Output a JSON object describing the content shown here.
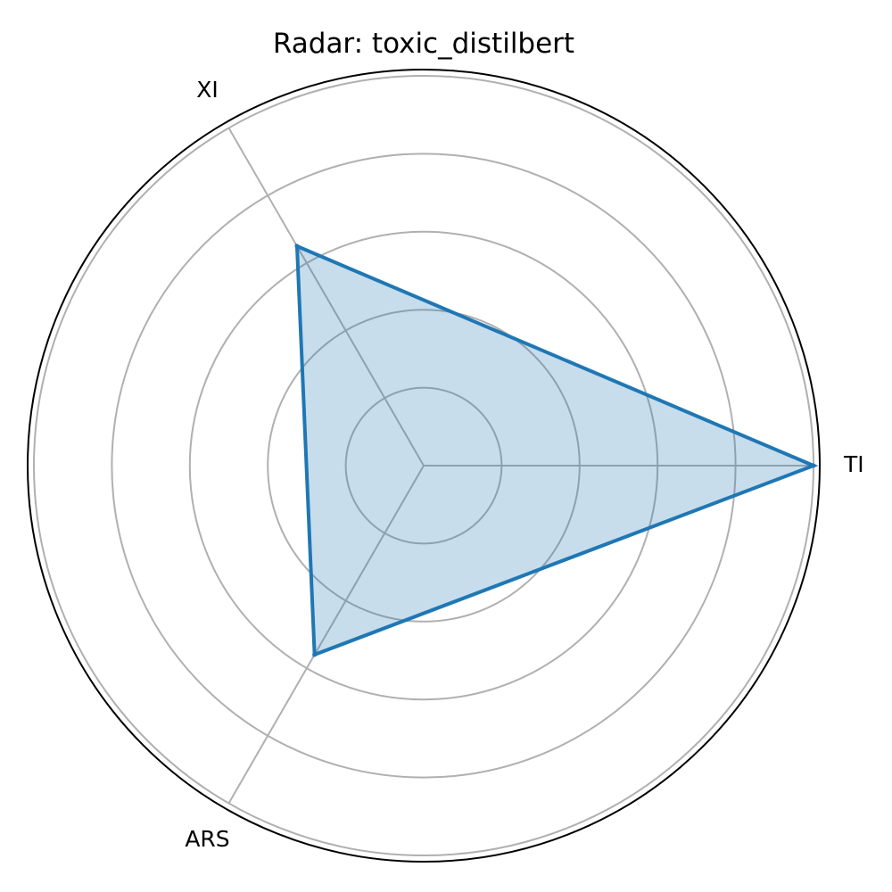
{
  "chart_data": {
    "type": "radar",
    "title": "Radar: toxic_distilbert",
    "axes": [
      "TI",
      "XI",
      "ARS"
    ],
    "series": [
      {
        "values": [
          1.0,
          0.65,
          0.56
        ]
      }
    ],
    "rlim": [
      0,
      1.0
    ],
    "rgrid": [
      0.2,
      0.4,
      0.6,
      0.8,
      1.0
    ],
    "grid": true,
    "colors": {
      "line": "#1f77b4",
      "fill": "#1f77b4",
      "grid": "#b0b0b0",
      "frame": "#000000"
    }
  }
}
